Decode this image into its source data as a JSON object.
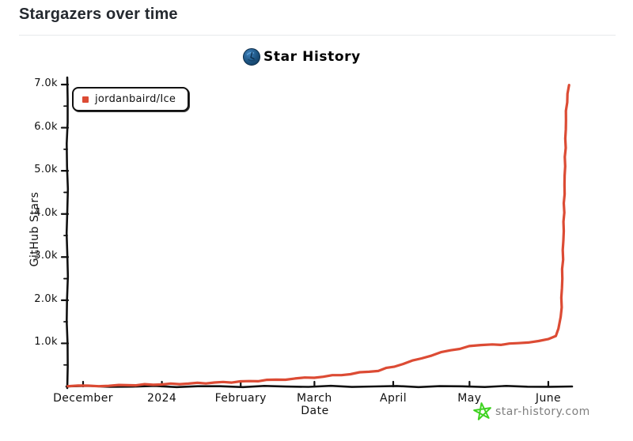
{
  "page": {
    "title": "Stargazers over time"
  },
  "chart": {
    "title": "Star History",
    "legend": {
      "label": "jordanbaird/Ice",
      "marker_color": "#dc4b34"
    },
    "watermark": {
      "label": "star-history.com",
      "star_color": "#3fd321",
      "text_color": "#7f7f7f"
    },
    "colors": {
      "line": "#dc4b34",
      "axis": "#111111"
    }
  },
  "chart_data": {
    "type": "line",
    "title": "Star History",
    "xlabel": "Date",
    "ylabel": "GitHub Stars",
    "ylim": [
      0,
      7000
    ],
    "grid": false,
    "legend_position": "top-left",
    "x_ticks": [
      {
        "date": "2023-12-01",
        "label": "December"
      },
      {
        "date": "2024-01-01",
        "label": "2024"
      },
      {
        "date": "2024-02-01",
        "label": "February"
      },
      {
        "date": "2024-03-01",
        "label": "March"
      },
      {
        "date": "2024-04-01",
        "label": "April"
      },
      {
        "date": "2024-05-01",
        "label": "May"
      },
      {
        "date": "2024-06-01",
        "label": "June"
      }
    ],
    "y_ticks": [
      {
        "value": 1000,
        "label": "1.0k"
      },
      {
        "value": 2000,
        "label": "2.0k"
      },
      {
        "value": 3000,
        "label": "3.0k"
      },
      {
        "value": 4000,
        "label": "4.0k"
      },
      {
        "value": 5000,
        "label": "5.0k"
      },
      {
        "value": 6000,
        "label": "6.0k"
      },
      {
        "value": 7000,
        "label": "7.0k"
      }
    ],
    "series": [
      {
        "name": "jordanbaird/Ice",
        "color": "#dc4b34",
        "points": [
          [
            "2023-11-25",
            5
          ],
          [
            "2023-12-15",
            25
          ],
          [
            "2024-01-01",
            50
          ],
          [
            "2024-01-15",
            75
          ],
          [
            "2024-02-01",
            110
          ],
          [
            "2024-02-15",
            155
          ],
          [
            "2024-03-01",
            210
          ],
          [
            "2024-03-15",
            290
          ],
          [
            "2024-03-26",
            370
          ],
          [
            "2024-04-05",
            520
          ],
          [
            "2024-04-12",
            660
          ],
          [
            "2024-04-20",
            790
          ],
          [
            "2024-05-01",
            930
          ],
          [
            "2024-05-10",
            965
          ],
          [
            "2024-05-20",
            1000
          ],
          [
            "2024-06-01",
            1090
          ],
          [
            "2024-06-04",
            1180
          ],
          [
            "2024-06-05",
            1340
          ],
          [
            "2024-06-06",
            1600
          ],
          [
            "2024-06-07",
            3600
          ],
          [
            "2024-06-08",
            6400
          ],
          [
            "2024-06-09",
            7000
          ]
        ]
      }
    ]
  }
}
